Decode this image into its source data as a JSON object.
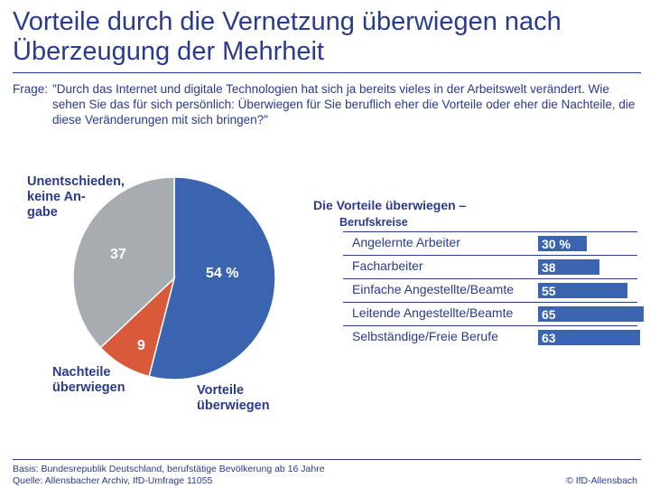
{
  "title": "Vorteile durch die Vernetzung überwiegen nach Überzeugung der Mehrheit",
  "question": {
    "label": "Frage:",
    "text": "\"Durch das Internet und digitale Technologien hat sich ja bereits vieles in der Arbeitswelt verändert. Wie sehen Sie das für sich persönlich: Überwiegen für Sie beruflich eher die Vorteile oder eher die Nachteile, die diese Veränderungen mit sich bringen?\""
  },
  "colors": {
    "primary": "#2a3a8c",
    "vorteile": "#3a64b0",
    "nachteile": "#d95a3b",
    "unentschieden": "#a7acb1"
  },
  "chart_data": [
    {
      "type": "pie",
      "title": "",
      "slices": [
        {
          "name": "Vorteile überwiegen",
          "value": 54,
          "display": "54 %",
          "color": "#3a64b0"
        },
        {
          "name": "Nachteile überwiegen",
          "value": 9,
          "display": "9",
          "color": "#d95a3b"
        },
        {
          "name": "Unentschieden, keine Angabe",
          "value": 37,
          "display": "37",
          "color": "#a7acb1"
        }
      ],
      "labels": {
        "vorteile": [
          "Vorteile",
          "überwiegen"
        ],
        "nachteile": [
          "Nachteile",
          "überwiegen"
        ],
        "unentschieden": [
          "Unentschieden,",
          "keine An-",
          "gabe"
        ]
      }
    },
    {
      "type": "bar",
      "title": "Die Vorteile überwiegen –",
      "subtitle": "Berufskreise",
      "categories": [
        "Angelernte Arbeiter",
        "Facharbeiter",
        "Einfache Angestellte/Beamte",
        "Leitende Angestellte/Beamte",
        "Selbständige/Freie Berufe"
      ],
      "values": [
        30,
        38,
        55,
        65,
        63
      ],
      "value_labels": [
        "30 %",
        "38",
        "55",
        "65",
        "63"
      ],
      "xlim": [
        0,
        100
      ]
    }
  ],
  "footer": {
    "basis": "Basis: Bundesrepublik Deutschland, berufstätige Bevölkerung ab 16 Jahre",
    "quelle": "Quelle: Allensbacher Archiv, IfD-Umfrage 11055",
    "copyright": "© IfD-Allensbach"
  }
}
